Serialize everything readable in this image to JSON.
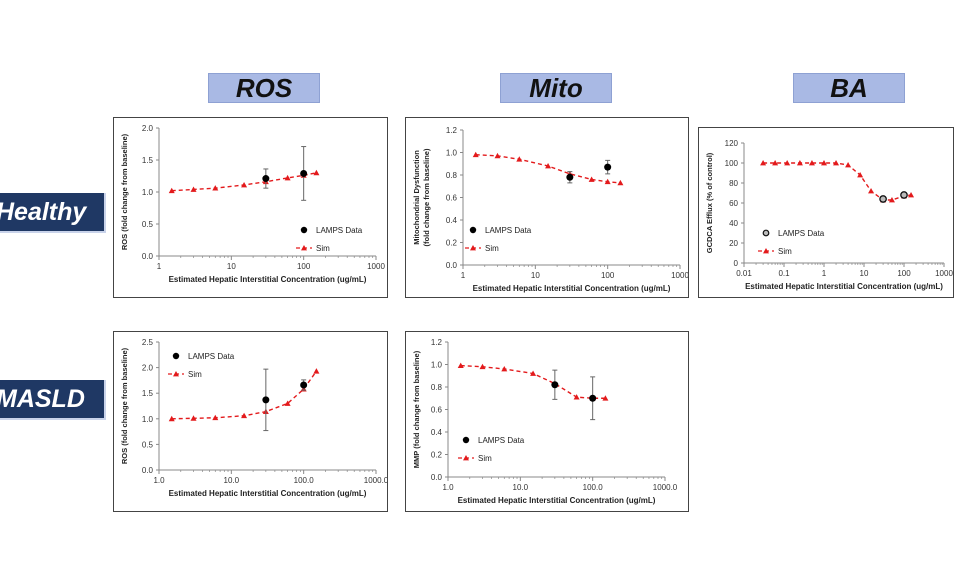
{
  "columns": [
    "ROS",
    "Mito",
    "BA"
  ],
  "rows": [
    "Healthy",
    "MASLD"
  ],
  "chart_data": [
    {
      "id": "healthy-ros",
      "type": "line",
      "xscale": "log",
      "xlabel": "Estimated Hepatic Interstitial Concentration (ug/mL)",
      "ylabel": "ROS (fold change from baseline)",
      "xlim": [
        1,
        1000
      ],
      "ylim": [
        0,
        2
      ],
      "xticks": [
        1,
        10,
        100,
        1000
      ],
      "xtick_labels": [
        "1",
        "10",
        "100",
        "1000"
      ],
      "yticks": [
        0,
        0.5,
        1,
        1.5,
        2
      ],
      "ytick_labels": [
        "0.0",
        "0.5",
        "1.0",
        "1.5",
        "2.0"
      ],
      "legend": [
        "LAMPS Data",
        "Sim"
      ],
      "legend_position": "right",
      "sim": {
        "name": "Sim",
        "x": [
          1.5,
          3,
          6,
          15,
          30,
          60,
          100,
          150
        ],
        "y": [
          1.02,
          1.04,
          1.06,
          1.11,
          1.16,
          1.22,
          1.26,
          1.3
        ]
      },
      "data": {
        "name": "LAMPS Data",
        "x": [
          30,
          100
        ],
        "y": [
          1.21,
          1.29
        ],
        "err": [
          0.15,
          0.42
        ]
      }
    },
    {
      "id": "healthy-mito",
      "type": "line",
      "xscale": "log",
      "xlabel": "Estimated Hepatic Interstitial Concentration (ug/mL)",
      "ylabel": [
        "Mitochondrial Dysfunction",
        "(fold change from baseline)"
      ],
      "xlim": [
        1,
        1000
      ],
      "ylim": [
        0,
        1.2
      ],
      "xticks": [
        1,
        10,
        100,
        1000
      ],
      "xtick_labels": [
        "1",
        "10",
        "100",
        "1000"
      ],
      "yticks": [
        0,
        0.2,
        0.4,
        0.6,
        0.8,
        1.0,
        1.2
      ],
      "ytick_labels": [
        "0.0",
        "0.2",
        "0.4",
        "0.6",
        "0.8",
        "1.0",
        "1.2"
      ],
      "legend": [
        "LAMPS Data",
        "Sim"
      ],
      "legend_position": "left",
      "sim": {
        "name": "Sim",
        "x": [
          1.5,
          3,
          6,
          15,
          30,
          60,
          100,
          150
        ],
        "y": [
          0.98,
          0.97,
          0.94,
          0.88,
          0.81,
          0.76,
          0.74,
          0.73
        ]
      },
      "data": {
        "name": "LAMPS Data",
        "x": [
          30,
          100
        ],
        "y": [
          0.78,
          0.87
        ],
        "err": [
          0.05,
          0.06
        ]
      }
    },
    {
      "id": "healthy-ba",
      "type": "line",
      "xscale": "log",
      "xlabel": "Estimated Hepatic Interstitial Concentration (ug/mL)",
      "ylabel": "GCDCA Efflux (% of control)",
      "xlim": [
        0.01,
        1000
      ],
      "ylim": [
        0,
        120
      ],
      "xticks": [
        0.01,
        0.1,
        1,
        10,
        100,
        1000
      ],
      "xtick_labels": [
        "0.01",
        "0.1",
        "1",
        "10",
        "100",
        "1000"
      ],
      "yticks": [
        0,
        20,
        40,
        60,
        80,
        100,
        120
      ],
      "ytick_labels": [
        "0",
        "20",
        "40",
        "60",
        "80",
        "100",
        "120"
      ],
      "legend": [
        "LAMPS Data",
        "Sim"
      ],
      "legend_position": "left",
      "sim": {
        "name": "Sim",
        "x": [
          0.03,
          0.06,
          0.12,
          0.25,
          0.5,
          1,
          2,
          4,
          8,
          15,
          30,
          50,
          100,
          150
        ],
        "y": [
          100,
          100,
          100,
          100,
          100,
          100,
          100,
          98,
          88,
          72,
          63,
          63,
          67,
          68
        ]
      },
      "data": {
        "name": "LAMPS Data",
        "x": [
          30,
          100
        ],
        "y": [
          64,
          68
        ],
        "err": [
          0,
          0
        ],
        "open": true
      }
    },
    {
      "id": "masld-ros",
      "type": "line",
      "xscale": "log",
      "xlabel": "Estimated Hepatic Interstitial Concentration (ug/mL)",
      "ylabel": "ROS (fold change from baseline)",
      "xlim": [
        1,
        1000
      ],
      "ylim": [
        0,
        2.5
      ],
      "xticks": [
        1,
        10,
        100,
        1000
      ],
      "xtick_labels": [
        "1.0",
        "10.0",
        "100.0",
        "1000.0"
      ],
      "yticks": [
        0,
        0.5,
        1,
        1.5,
        2,
        2.5
      ],
      "ytick_labels": [
        "0.0",
        "0.5",
        "1.0",
        "1.5",
        "2.0",
        "2.5"
      ],
      "legend": [
        "LAMPS Data",
        "Sim"
      ],
      "legend_position": "left",
      "sim": {
        "name": "Sim",
        "x": [
          1.5,
          3,
          6,
          15,
          30,
          60,
          100,
          150
        ],
        "y": [
          1.0,
          1.01,
          1.02,
          1.06,
          1.14,
          1.3,
          1.58,
          1.93
        ]
      },
      "data": {
        "name": "LAMPS Data",
        "x": [
          30,
          100
        ],
        "y": [
          1.37,
          1.66
        ],
        "err": [
          0.6,
          0.1
        ]
      }
    },
    {
      "id": "masld-mito",
      "type": "line",
      "xscale": "log",
      "xlabel": "Estimated Hepatic Interstitial Concentration (ug/mL)",
      "ylabel": "MMP (fold change from baseline)",
      "xlim": [
        1,
        1000
      ],
      "ylim": [
        0,
        1.2
      ],
      "xticks": [
        1,
        10,
        100,
        1000
      ],
      "xtick_labels": [
        "1.0",
        "10.0",
        "100.0",
        "1000.0"
      ],
      "yticks": [
        0,
        0.2,
        0.4,
        0.6,
        0.8,
        1.0,
        1.2
      ],
      "ytick_labels": [
        "0.0",
        "0.2",
        "0.4",
        "0.6",
        "0.8",
        "1.0",
        "1.2"
      ],
      "legend": [
        "LAMPS Data",
        "Sim"
      ],
      "legend_position": "left",
      "sim": {
        "name": "Sim",
        "x": [
          1.5,
          3,
          6,
          15,
          30,
          60,
          100,
          150
        ],
        "y": [
          0.99,
          0.98,
          0.96,
          0.92,
          0.83,
          0.71,
          0.7,
          0.7
        ]
      },
      "data": {
        "name": "LAMPS Data",
        "x": [
          30,
          100
        ],
        "y": [
          0.82,
          0.7
        ],
        "err": [
          0.13,
          0.19
        ]
      }
    }
  ]
}
